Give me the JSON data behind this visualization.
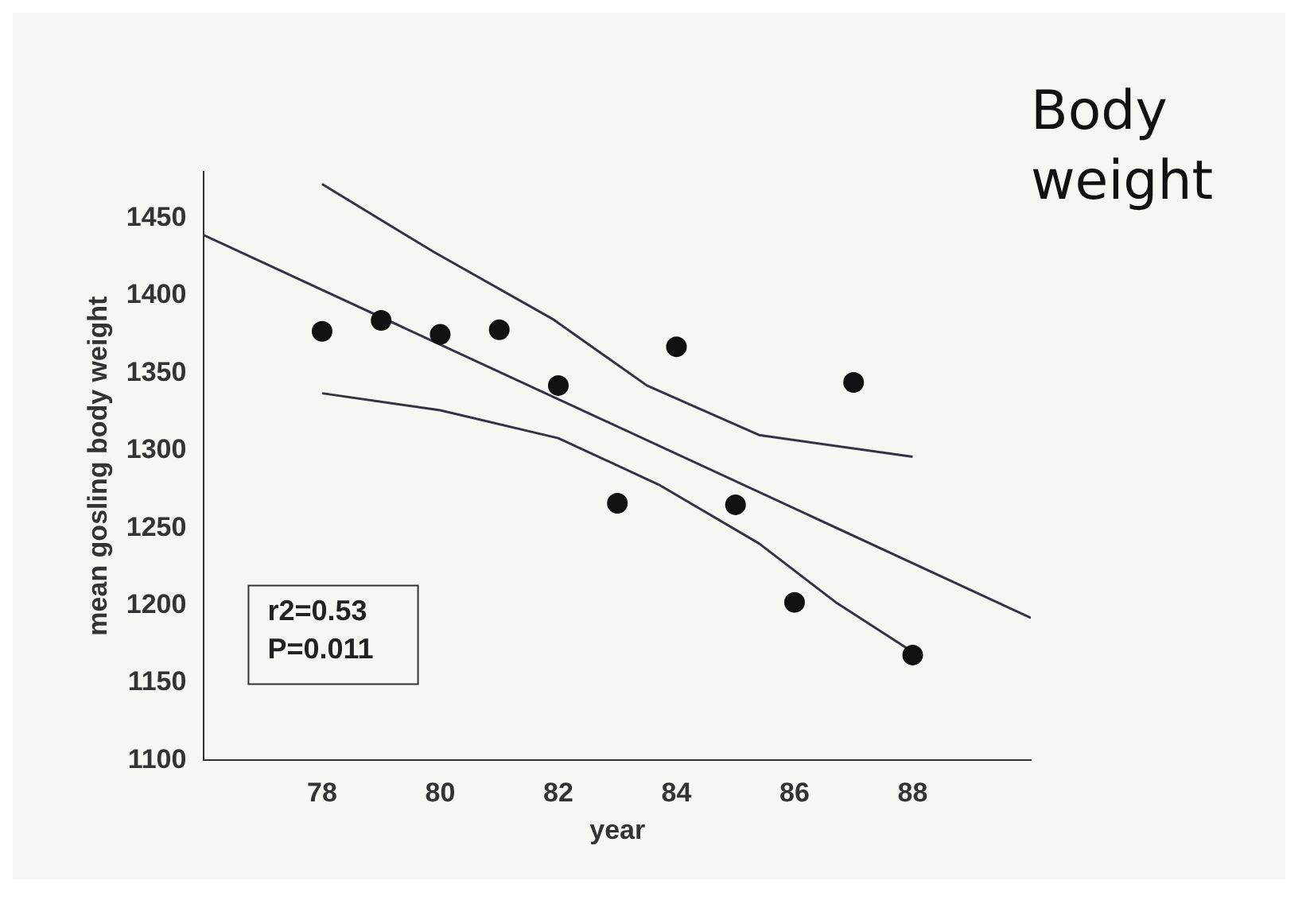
{
  "chart_data": {
    "type": "scatter",
    "title": "Body weight",
    "xlabel": "year",
    "ylabel": "mean gosling body weight",
    "annotations": [
      "r2=0.53",
      "P=0.011"
    ],
    "xlim": [
      76,
      90
    ],
    "xticks": [
      78,
      80,
      82,
      84,
      86,
      88
    ],
    "ylim": [
      1100,
      1480
    ],
    "yticks": [
      1100,
      1150,
      1200,
      1250,
      1300,
      1350,
      1400,
      1450
    ],
    "grid": false,
    "series": [
      {
        "color": "#111111",
        "marker": "circle",
        "x": [
          78,
          79,
          80,
          81,
          82,
          83,
          84,
          85,
          86,
          87,
          88
        ],
        "values": [
          1377,
          1384,
          1375,
          1378,
          1342,
          1266,
          1367,
          1265,
          1202,
          1344,
          1168
        ]
      },
      {
        "type": "line",
        "color": "#333344",
        "marker": "none",
        "line_style": "solid",
        "x": [
          76,
          90
        ],
        "values": [
          1439,
          1192
        ]
      },
      {
        "type": "line",
        "color": "#333344",
        "marker": "none",
        "line_style": "solid",
        "x": [
          78,
          79.9,
          81.9,
          83.5,
          85.4,
          88
        ],
        "values": [
          1472,
          1428,
          1385,
          1342,
          1310,
          1296
        ]
      },
      {
        "type": "line",
        "color": "#333344",
        "marker": "none",
        "line_style": "solid",
        "x": [
          78,
          80,
          82,
          83.7,
          85.4,
          86.7,
          88
        ],
        "values": [
          1337,
          1326,
          1308,
          1278,
          1240,
          1202,
          1170
        ]
      }
    ]
  }
}
